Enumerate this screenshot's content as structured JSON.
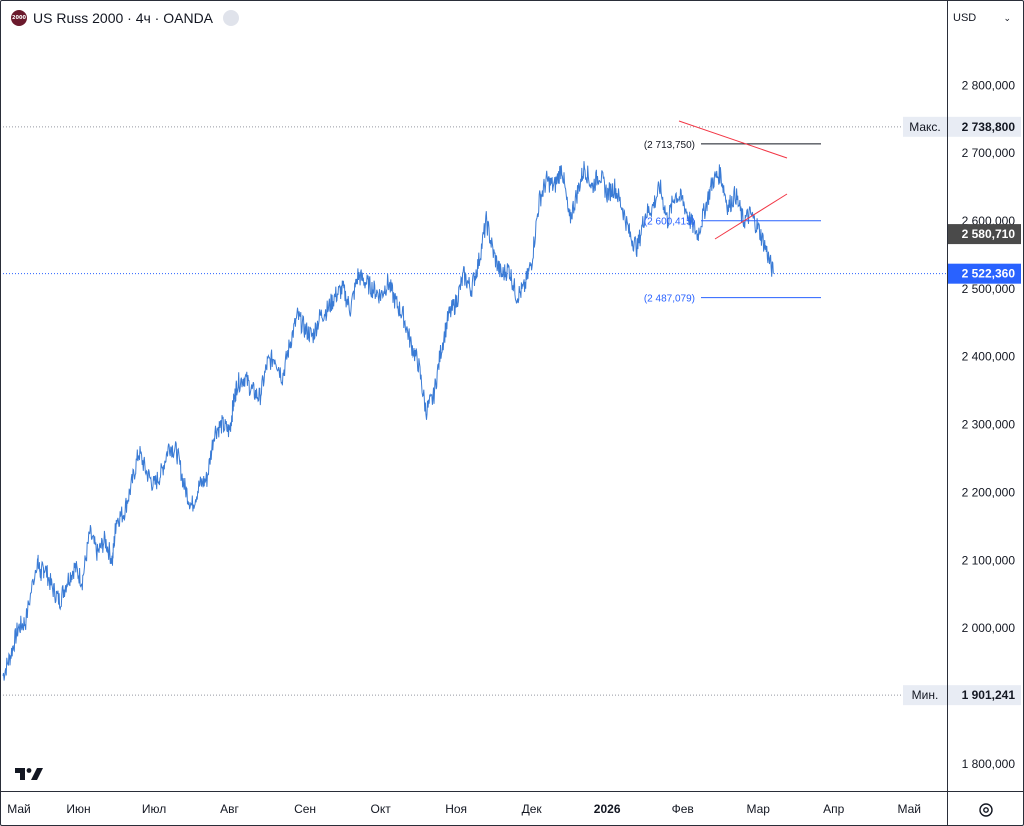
{
  "header": {
    "symbol_logo": "2000",
    "title": "US Russ 2000 · 4ч · OANDA"
  },
  "currency_selector": {
    "label": "USD",
    "icon": "chevron-down-icon"
  },
  "colors": {
    "series": "#2962ff",
    "series_line": "#3a7bd5",
    "triangle": "#f23645",
    "last_price_bg": "#2962ff",
    "prev_close_bg": "#4a4a4a",
    "maxmin_bg": "#e8ecf4",
    "dotted_line": "#9598a1",
    "text": "#131722"
  },
  "chart_data": {
    "type": "line",
    "title": "US Russ 2000 · 4ч · OANDA",
    "xlabel": "",
    "ylabel": "",
    "ylim": [
      1760000,
      2880000
    ],
    "y_ticks": [
      {
        "value": 1800000,
        "label": "1 800,000"
      },
      {
        "value": 1900000,
        "label": "1 900,000"
      },
      {
        "value": 2000000,
        "label": "2 000,000"
      },
      {
        "value": 2100000,
        "label": "2 100,000"
      },
      {
        "value": 2200000,
        "label": "2 200,000"
      },
      {
        "value": 2300000,
        "label": "2 300,000"
      },
      {
        "value": 2400000,
        "label": "2 400,000"
      },
      {
        "value": 2500000,
        "label": "2 500,000"
      },
      {
        "value": 2600000,
        "label": "2 600,000"
      },
      {
        "value": 2700000,
        "label": "2 700,000"
      },
      {
        "value": 2800000,
        "label": "2 800,000"
      }
    ],
    "x_ticks": [
      {
        "label": "Май",
        "pos": 0.0,
        "bold": false
      },
      {
        "label": "Июн",
        "pos": 1.0,
        "bold": false
      },
      {
        "label": "Июл",
        "pos": 2.0,
        "bold": false
      },
      {
        "label": "Авг",
        "pos": 3.0,
        "bold": false
      },
      {
        "label": "Сен",
        "pos": 4.0,
        "bold": false
      },
      {
        "label": "Окт",
        "pos": 5.0,
        "bold": false
      },
      {
        "label": "Ноя",
        "pos": 6.0,
        "bold": false
      },
      {
        "label": "Дек",
        "pos": 7.0,
        "bold": false
      },
      {
        "label": "2026",
        "pos": 8.0,
        "bold": true
      },
      {
        "label": "Фев",
        "pos": 9.0,
        "bold": false
      },
      {
        "label": "Мар",
        "pos": 10.0,
        "bold": false
      },
      {
        "label": "Апр",
        "pos": 11.0,
        "bold": false
      },
      {
        "label": "Май",
        "pos": 12.0,
        "bold": false
      }
    ],
    "x_range": [
      0.0,
      12.5
    ],
    "series": [
      {
        "x": [
          0.0,
          0.1,
          0.2,
          0.3,
          0.45,
          0.5,
          0.55,
          0.65,
          0.75,
          0.85,
          0.95,
          1.05,
          1.15,
          1.25,
          1.35,
          1.45,
          1.5,
          1.6,
          1.7,
          1.8,
          1.9,
          2.0,
          2.1,
          2.2,
          2.3,
          2.4,
          2.5,
          2.6,
          2.7,
          2.8,
          2.9,
          3.0,
          3.05,
          3.1,
          3.2,
          3.3,
          3.4,
          3.5,
          3.6,
          3.7,
          3.8,
          3.9,
          4.0,
          4.1,
          4.2,
          4.3,
          4.4,
          4.5,
          4.6,
          4.7,
          4.8,
          4.9,
          5.0,
          5.1,
          5.2,
          5.3,
          5.4,
          5.5,
          5.6,
          5.7,
          5.8,
          5.9,
          6.0,
          6.1,
          6.2,
          6.3,
          6.4,
          6.5,
          6.6,
          6.7,
          6.8,
          6.9,
          7.0,
          7.1,
          7.2,
          7.3,
          7.4,
          7.5,
          7.6,
          7.7,
          7.8,
          7.9,
          8.0,
          8.1,
          8.2,
          8.3,
          8.4,
          8.5,
          8.6,
          8.7,
          8.8,
          8.9,
          9.0,
          9.1,
          9.2,
          9.3,
          9.4,
          9.5,
          9.6,
          9.7,
          9.8,
          9.9,
          10.0,
          10.1,
          10.2
        ],
        "values": [
          1930000,
          1960000,
          2000000,
          2010000,
          2100000,
          2080000,
          2090000,
          2060000,
          2040000,
          2070000,
          2090000,
          2070000,
          2140000,
          2110000,
          2130000,
          2100000,
          2160000,
          2170000,
          2210000,
          2260000,
          2230000,
          2210000,
          2230000,
          2270000,
          2260000,
          2210000,
          2180000,
          2210000,
          2220000,
          2290000,
          2300000,
          2290000,
          2330000,
          2360000,
          2370000,
          2350000,
          2340000,
          2390000,
          2400000,
          2370000,
          2420000,
          2460000,
          2440000,
          2430000,
          2460000,
          2470000,
          2490000,
          2500000,
          2470000,
          2520000,
          2510000,
          2500000,
          2490000,
          2510000,
          2480000,
          2460000,
          2420000,
          2390000,
          2320000,
          2340000,
          2410000,
          2460000,
          2480000,
          2520000,
          2500000,
          2540000,
          2600000,
          2550000,
          2520000,
          2530000,
          2490000,
          2500000,
          2540000,
          2630000,
          2660000,
          2650000,
          2680000,
          2600000,
          2640000,
          2680000,
          2650000,
          2670000,
          2640000,
          2650000,
          2620000,
          2580000,
          2560000,
          2610000,
          2620000,
          2650000,
          2600000,
          2640000,
          2630000,
          2600000,
          2580000,
          2620000,
          2660000,
          2670000,
          2620000,
          2640000,
          2600000,
          2610000,
          2590000,
          2560000,
          2522360
        ]
      }
    ],
    "annotations": {
      "max": {
        "label": "Макс.",
        "value": 2738800,
        "text": "2 738,800"
      },
      "min": {
        "label": "Мин.",
        "value": 1901241,
        "text": "1 901,241"
      },
      "prev_close": {
        "value": 2580710,
        "text": "2 580,710"
      },
      "last": {
        "value": 2522360,
        "text": "2 522,360"
      },
      "levels": [
        {
          "value": 2713750,
          "text": "(2 713,750)",
          "color": "#131722"
        },
        {
          "value": 2600415,
          "text": "(2 600,415)",
          "color": "#2962ff"
        },
        {
          "value": 2487079,
          "text": "(2 487,079)",
          "color": "#2962ff"
        }
      ]
    }
  },
  "footer": {
    "settings_icon": "gear-icon",
    "brand_icon": "tradingview-logo-icon"
  }
}
